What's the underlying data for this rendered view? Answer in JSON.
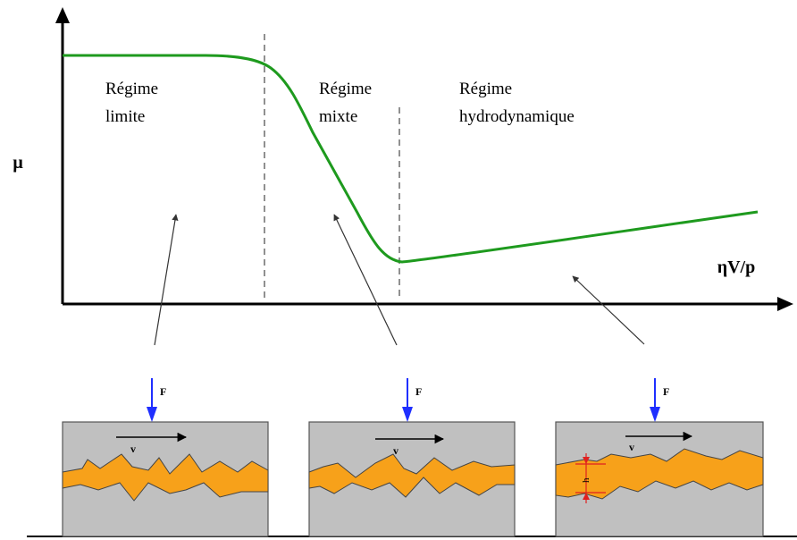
{
  "labels": {
    "y_axis": "μ",
    "x_axis": "ηV/p"
  },
  "regimes": [
    {
      "line1": "Régime",
      "line2": "limite"
    },
    {
      "line1": "Régime",
      "line2": "mixte"
    },
    {
      "line1": "Régime",
      "line2": "hydrodynamique"
    }
  ],
  "panels": [
    {
      "force_label": "F",
      "velocity_label": "v"
    },
    {
      "force_label": "F",
      "velocity_label": "v"
    },
    {
      "force_label": "F",
      "velocity_label": "v",
      "gap_label": "h"
    }
  ],
  "colors": {
    "curve": "#1e9a1e",
    "lubricant": "#f7a11a",
    "surface": "#c0c0c0",
    "force_arrow": "#1f2fff",
    "gap_marker": "#e02020"
  }
}
